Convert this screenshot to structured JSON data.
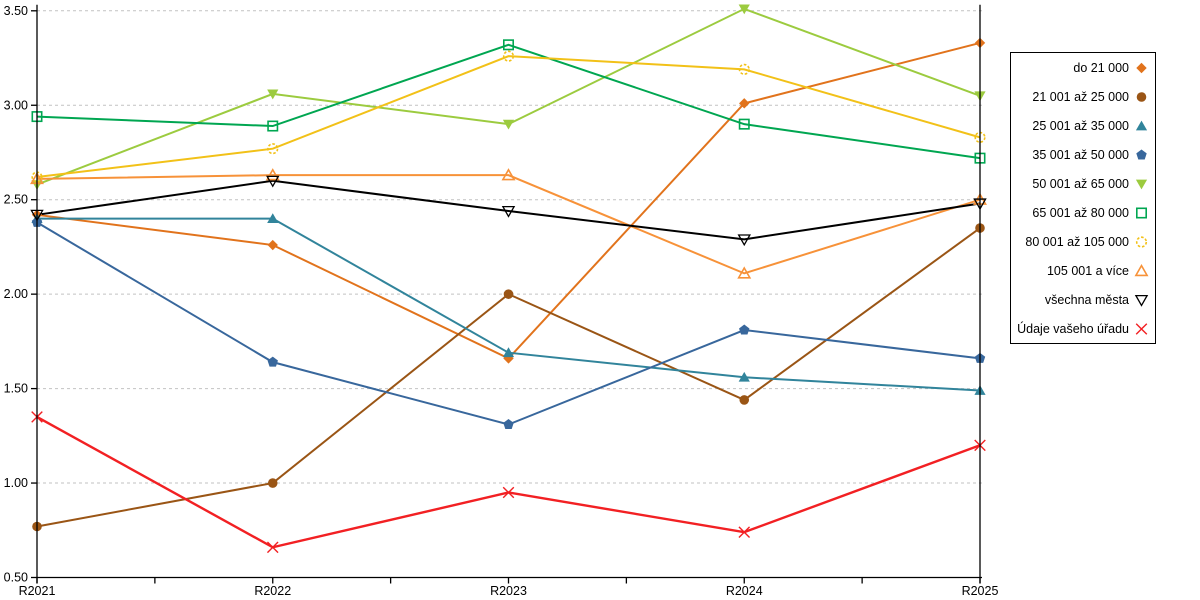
{
  "chart_data": {
    "type": "line",
    "title": "",
    "xlabel": "",
    "ylabel": "",
    "categories": [
      "R2021",
      "R2022",
      "R2023",
      "R2024",
      "R2025"
    ],
    "ylim": [
      0.5,
      3.5
    ],
    "ytick_labels": [
      "0.50",
      "1.00",
      "1.50",
      "2.00",
      "2.50",
      "3.00",
      "3.50"
    ],
    "grid": "horizontal-dashed",
    "gridline_color": "#c2c2c2",
    "axis_color": "#000000",
    "legend_position": "right",
    "series": [
      {
        "name": "do 21 000",
        "color": "#e1731c",
        "marker": "diamond",
        "marker_style": "filled",
        "values": [
          2.42,
          2.26,
          1.66,
          3.01,
          3.33
        ]
      },
      {
        "name": "21 001 až 25 000",
        "color": "#9a5515",
        "marker": "circle",
        "marker_style": "filled",
        "values": [
          0.77,
          1.0,
          2.0,
          1.44,
          2.35
        ]
      },
      {
        "name": "25 001 až 35 000",
        "color": "#31849b",
        "marker": "triangle-up",
        "marker_style": "filled",
        "values": [
          2.4,
          2.4,
          1.69,
          1.56,
          1.49
        ]
      },
      {
        "name": "35 001 až 50 000",
        "color": "#38679c",
        "marker": "pentagon",
        "marker_style": "filled",
        "values": [
          2.38,
          1.64,
          1.31,
          1.81,
          1.66
        ]
      },
      {
        "name": "50 001 až 65 000",
        "color": "#9ccb3f",
        "marker": "triangle-down",
        "marker_style": "filled",
        "values": [
          2.58,
          3.06,
          2.9,
          3.51,
          3.05
        ]
      },
      {
        "name": "65 001 až 80 000",
        "color": "#00a651",
        "marker": "square",
        "marker_style": "open",
        "values": [
          2.94,
          2.89,
          3.32,
          2.9,
          2.72
        ]
      },
      {
        "name": "80 001 až 105 000",
        "color": "#f2c118",
        "marker": "circle-dashed",
        "marker_style": "open",
        "values": [
          2.62,
          2.77,
          3.26,
          3.19,
          2.83
        ]
      },
      {
        "name": "105 001 a více",
        "color": "#f79239",
        "marker": "triangle-up",
        "marker_style": "open",
        "values": [
          2.61,
          2.63,
          2.63,
          2.11,
          2.5
        ]
      },
      {
        "name": "všechna města",
        "color": "#000000",
        "marker": "triangle-down",
        "marker_style": "open",
        "values": [
          2.42,
          2.6,
          2.44,
          2.29,
          2.48
        ]
      },
      {
        "name": "Údaje vašeho úřadu",
        "color": "#f22023",
        "marker": "x",
        "marker_style": "open",
        "values": [
          1.35,
          0.66,
          0.95,
          0.74,
          1.2
        ]
      }
    ]
  }
}
